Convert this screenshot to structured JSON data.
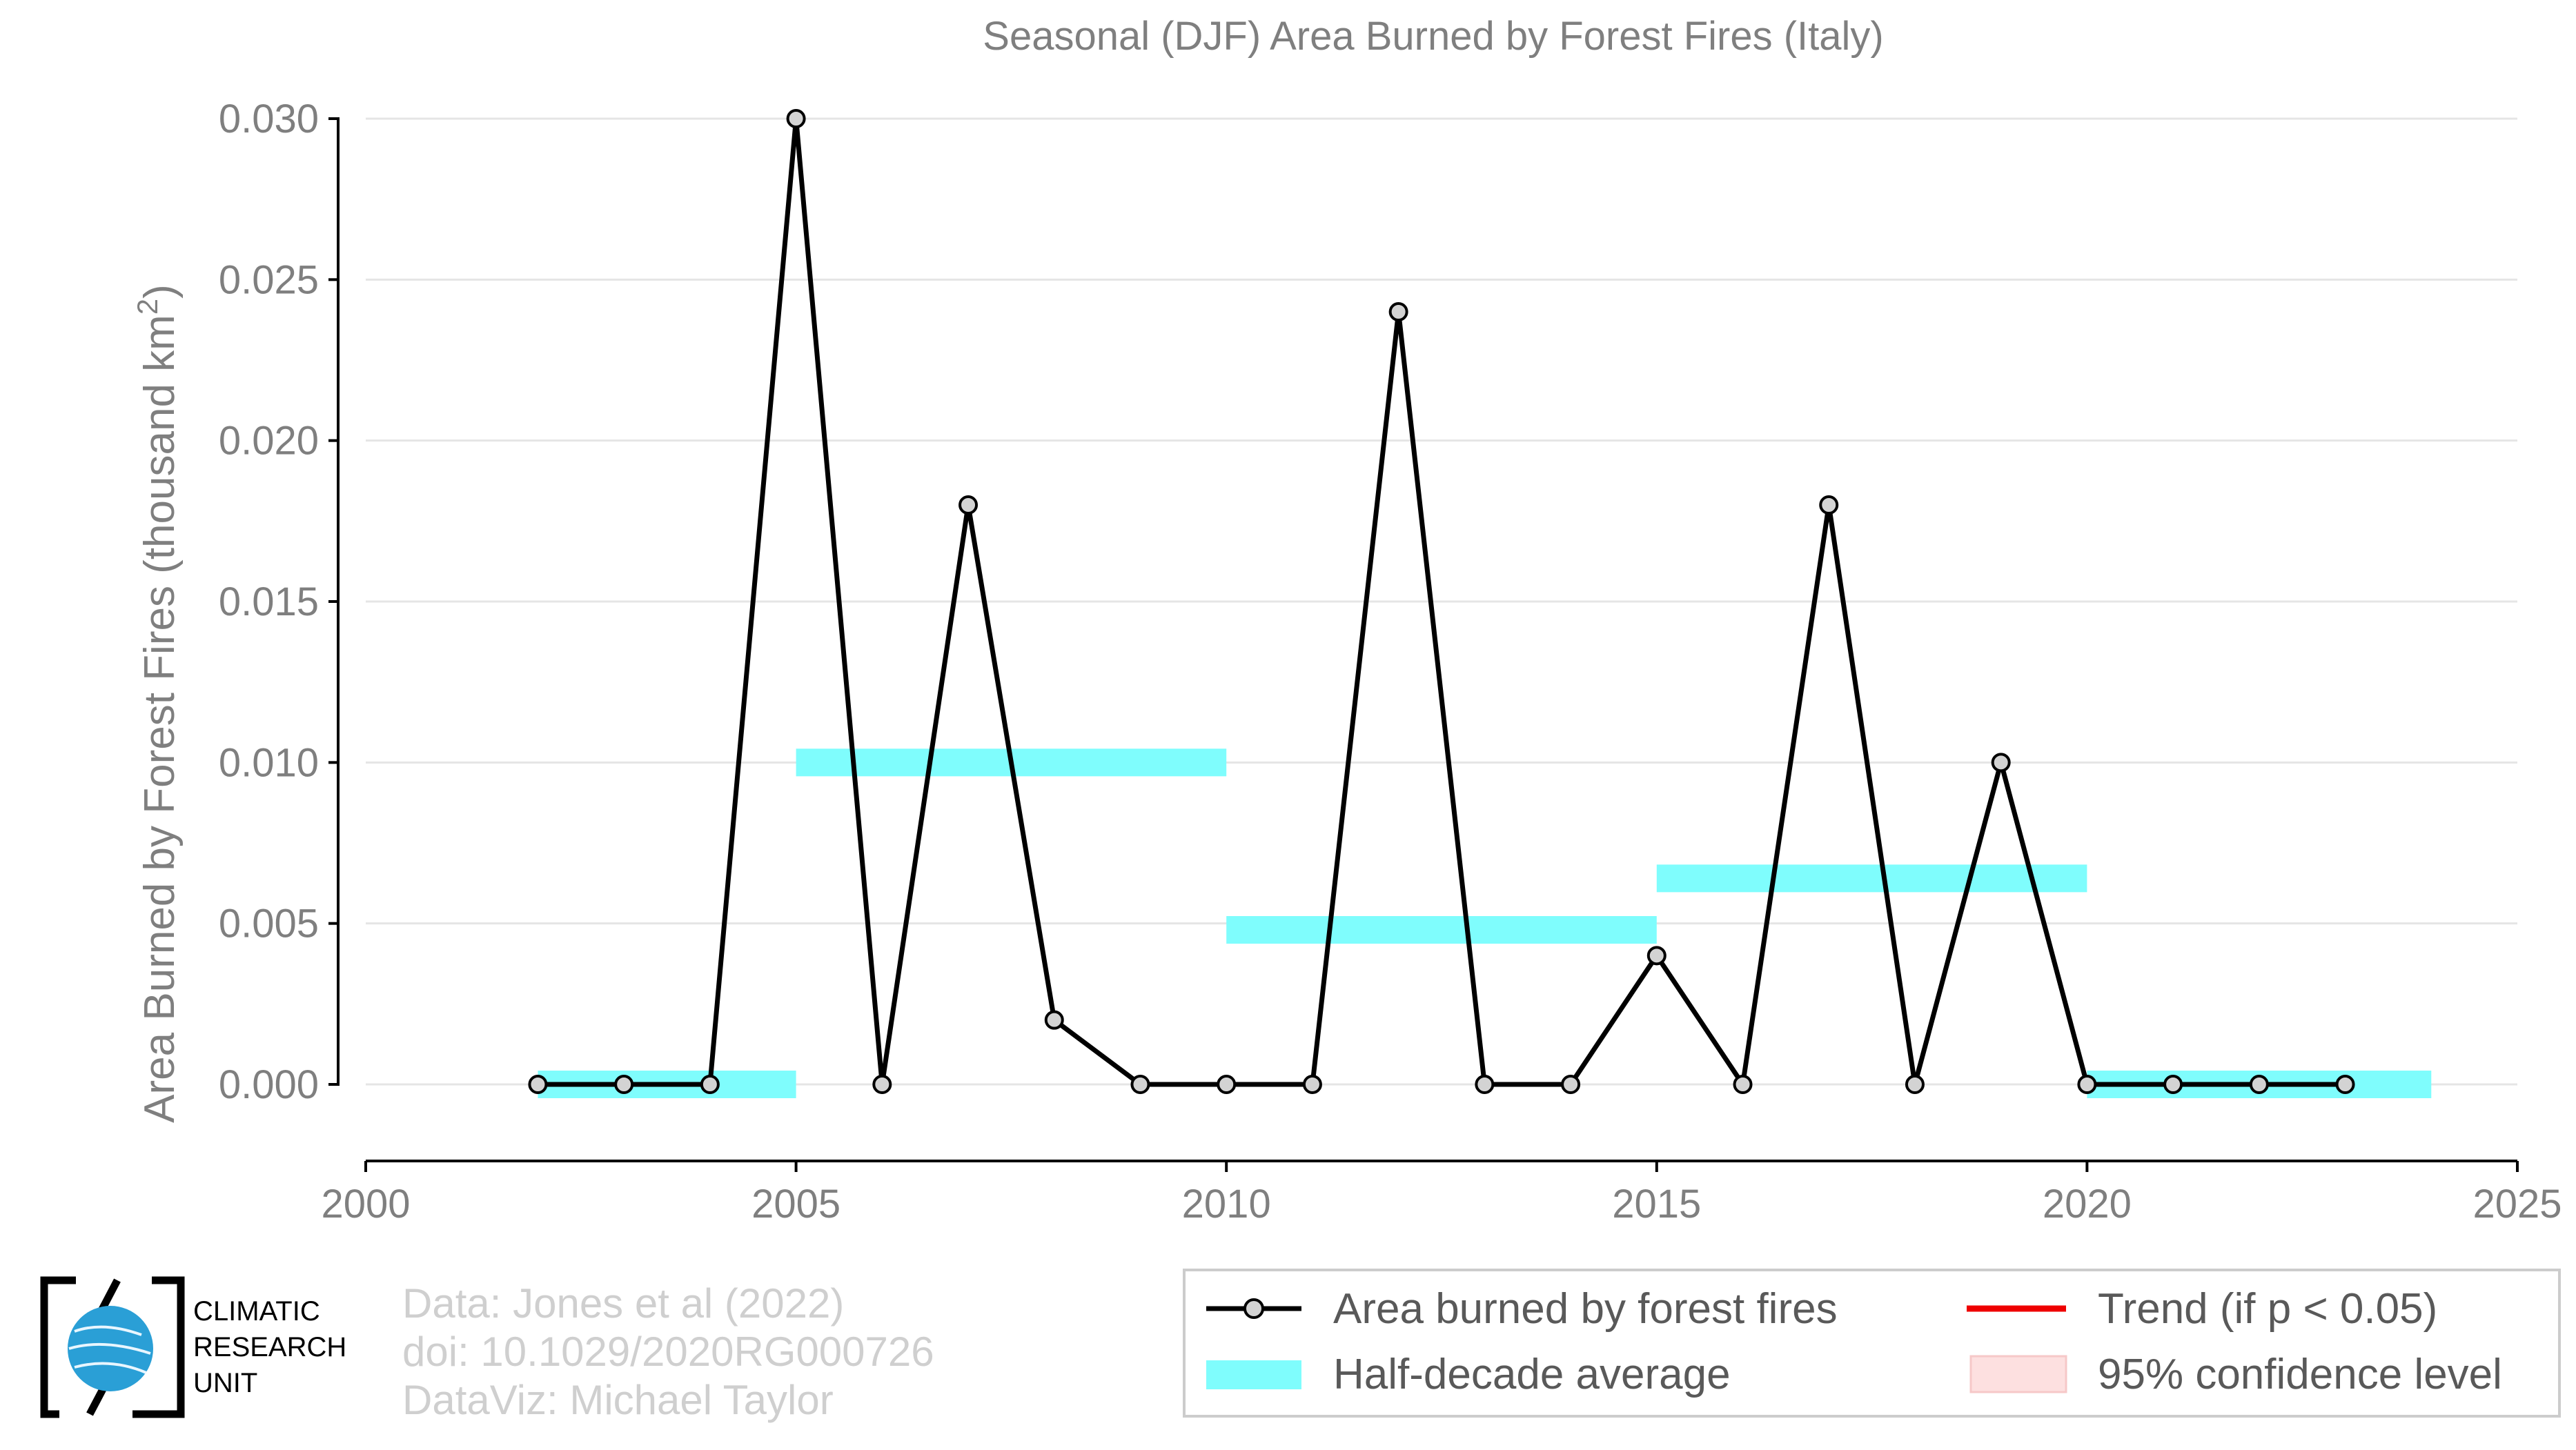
{
  "chart_data": {
    "type": "line",
    "title": "Seasonal (DJF) Area Burned by Forest Fires (Italy)",
    "xlabel": "",
    "ylabel": "Area Burned by Forest Fires (thousand km",
    "ylabel_superscript": "2",
    "ylabel_suffix": ")",
    "xlim": [
      2000,
      2025
    ],
    "ylim": [
      0.0,
      0.03
    ],
    "x_ticks": [
      2000,
      2005,
      2010,
      2015,
      2020,
      2025
    ],
    "x_tick_labels": [
      "2000",
      "2005",
      "2010",
      "2015",
      "2020",
      "2025"
    ],
    "y_ticks": [
      0.0,
      0.005,
      0.01,
      0.015,
      0.02,
      0.025,
      0.03
    ],
    "y_tick_labels": [
      "0.000",
      "0.005",
      "0.010",
      "0.015",
      "0.020",
      "0.025",
      "0.030"
    ],
    "grid": "horizontal",
    "series": [
      {
        "name": "Area burned by forest fires",
        "color": "#000000",
        "marker_fill": "#d3d3d3",
        "x": [
          2002,
          2003,
          2004,
          2005,
          2006,
          2007,
          2008,
          2009,
          2010,
          2011,
          2012,
          2013,
          2014,
          2015,
          2016,
          2017,
          2018,
          2019,
          2020,
          2021,
          2022,
          2023
        ],
        "y": [
          0.0,
          0.0,
          0.0,
          0.03,
          0.0,
          0.018,
          0.002,
          0.0,
          0.0,
          0.0,
          0.024,
          0.0,
          0.0,
          0.004,
          0.0,
          0.018,
          0.0,
          0.01,
          0.0,
          0.0,
          0.0,
          0.0
        ]
      }
    ],
    "half_decade_average": {
      "name": "Half-decade average",
      "color": "#7ffdfd",
      "segments": [
        {
          "x_start": 2002,
          "x_end": 2005,
          "y": 0.0
        },
        {
          "x_start": 2005,
          "x_end": 2010,
          "y": 0.01
        },
        {
          "x_start": 2010,
          "x_end": 2015,
          "y": 0.0048
        },
        {
          "x_start": 2015,
          "x_end": 2020,
          "y": 0.0064
        },
        {
          "x_start": 2020,
          "x_end": 2024,
          "y": 0.0
        }
      ]
    },
    "legend": {
      "placement": "bottom-right",
      "entries": [
        {
          "label": "Area burned by forest fires",
          "kind": "line-marker",
          "color": "#000000"
        },
        {
          "label": "Trend (if p < 0.05)",
          "kind": "line",
          "color": "#ee0000"
        },
        {
          "label": "Half-decade average",
          "kind": "band",
          "color": "#7ffdfd"
        },
        {
          "label": "95% confidence level",
          "kind": "band",
          "color": "#fde0e0"
        }
      ]
    }
  },
  "credits": {
    "line1": "Data: Jones et al (2022)",
    "line2": "doi: 10.1029/2020RG000726",
    "line3": "DataViz: Michael Taylor"
  },
  "logo": {
    "line1": "CLIMATIC",
    "line2": "RESEARCH",
    "line3": "UNIT",
    "globe_color": "#2a9fd6"
  }
}
